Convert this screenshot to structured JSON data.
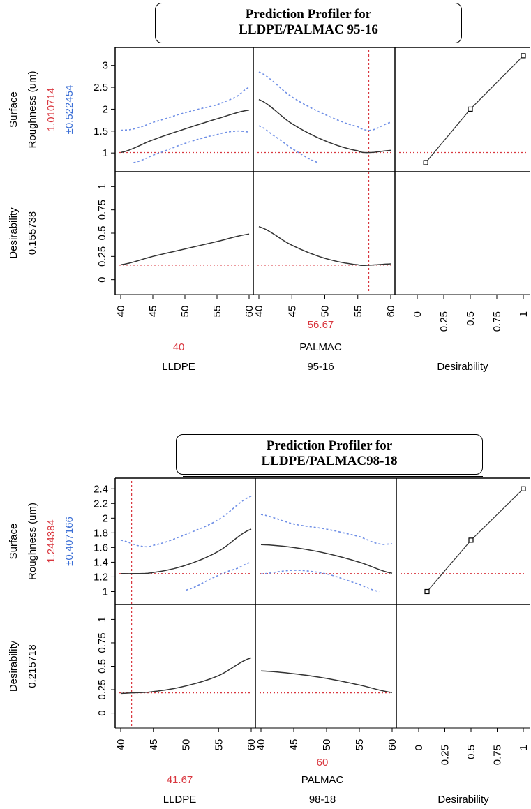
{
  "profilers": [
    {
      "title_line1": "Prediction Profiler for",
      "title_line2": "LLDPE/PALMAC 95-16",
      "response": {
        "label_line1": "Surface",
        "label_line2": "Roughness (um)",
        "value": "1.010714",
        "ci": "±0.522454",
        "ylim": [
          0.7,
          3.25
        ],
        "ticks": [
          "3",
          "2.5",
          "2",
          "1.5",
          "1"
        ],
        "tick_values": [
          3,
          2.5,
          2,
          1.5,
          1
        ]
      },
      "desirability": {
        "label": "Desirability",
        "value": "0.155738",
        "ylim": [
          -0.1,
          1.1
        ],
        "ticks": [
          "1",
          "0.75",
          "0.5",
          "0.25",
          "0"
        ],
        "tick_values": [
          1,
          0.75,
          0.5,
          0.25,
          0
        ]
      },
      "factors": [
        {
          "name_line1": "",
          "name_line2": "LLDPE",
          "current": "40",
          "current_value": 40,
          "xlim": [
            40,
            60
          ],
          "ticks": [
            "40",
            "45",
            "50",
            "55",
            "60"
          ],
          "tick_values": [
            40,
            45,
            50,
            55,
            60
          ],
          "show_vline": false
        },
        {
          "name_line1": "PALMAC",
          "name_line2": "95-16",
          "current": "56.67",
          "current_value": 56.67,
          "xlim": [
            40,
            60
          ],
          "ticks": [
            "40",
            "45",
            "50",
            "55",
            "60"
          ],
          "tick_values": [
            40,
            45,
            50,
            55,
            60
          ],
          "show_vline": true
        }
      ],
      "desirability_axis": {
        "label": "Desirability",
        "ticks": [
          "0",
          "0.25",
          "0.5",
          "0.75",
          "1"
        ],
        "tick_values": [
          0,
          0.25,
          0.5,
          0.75,
          1
        ]
      }
    },
    {
      "title_line1": "Prediction Profiler for",
      "title_line2": "LLDPE/PALMAC98-18",
      "response": {
        "label_line1": "Surface",
        "label_line2": "Roughness (um)",
        "value": "1.244384",
        "ci": "±0.407166",
        "ylim": [
          0.9,
          2.45
        ],
        "ticks": [
          "2.4",
          "2.2",
          "2",
          "1.8",
          "1.6",
          "1.4",
          "1.2",
          "1"
        ],
        "tick_values": [
          2.4,
          2.2,
          2,
          1.8,
          1.6,
          1.4,
          1.2,
          1
        ]
      },
      "desirability": {
        "label": "Desirability",
        "value": "0.215718",
        "ylim": [
          -0.1,
          1.1
        ],
        "ticks": [
          "1",
          "0.75",
          "0.5",
          "0.25",
          "0"
        ],
        "tick_values": [
          1,
          0.75,
          0.5,
          0.25,
          0
        ]
      },
      "factors": [
        {
          "name_line1": "",
          "name_line2": "LLDPE",
          "current": "41.67",
          "current_value": 41.67,
          "xlim": [
            40,
            60
          ],
          "ticks": [
            "40",
            "45",
            "50",
            "55",
            "60"
          ],
          "tick_values": [
            40,
            45,
            50,
            55,
            60
          ],
          "show_vline": true
        },
        {
          "name_line1": "PALMAC",
          "name_line2": "98-18",
          "current": "60",
          "current_value": 60,
          "xlim": [
            40,
            60
          ],
          "ticks": [
            "40",
            "45",
            "50",
            "55",
            "60"
          ],
          "tick_values": [
            40,
            45,
            50,
            55,
            60
          ],
          "show_vline": false
        }
      ],
      "desirability_axis": {
        "label": "Desirability",
        "ticks": [
          "0",
          "0.25",
          "0.5",
          "0.75",
          "1"
        ],
        "tick_values": [
          0,
          0.25,
          0.5,
          0.75,
          1
        ]
      }
    }
  ],
  "colors": {
    "current_value": "#d9363e",
    "ci": "#3b6fd6",
    "curve": "#333333",
    "ci_curve": "#6f8fe6",
    "ref_line": "#d9363e"
  },
  "chart_data": [
    {
      "type": "line",
      "title": "Prediction Profiler for LLDPE/PALMAC 95-16",
      "ylabel": "Surface Roughness (um)",
      "series": [
        {
          "panel": "LLDPE",
          "kind": "prediction",
          "x": [
            40,
            45,
            50,
            55,
            60
          ],
          "y": [
            1.01,
            1.3,
            1.55,
            1.78,
            1.98
          ]
        },
        {
          "panel": "LLDPE",
          "kind": "upper",
          "x": [
            40,
            42,
            45,
            50,
            55,
            58,
            60
          ],
          "y": [
            1.52,
            1.55,
            1.7,
            1.92,
            2.1,
            2.28,
            2.5
          ]
        },
        {
          "panel": "LLDPE",
          "kind": "lower",
          "x": [
            42,
            45,
            50,
            55,
            58,
            60
          ],
          "y": [
            0.78,
            0.95,
            1.22,
            1.42,
            1.5,
            1.48
          ]
        },
        {
          "panel": "PALMAC 95-16",
          "kind": "prediction",
          "x": [
            40,
            45,
            50,
            55,
            56.67,
            60
          ],
          "y": [
            2.22,
            1.67,
            1.28,
            1.05,
            1.01,
            1.06
          ]
        },
        {
          "panel": "PALMAC 95-16",
          "kind": "upper",
          "x": [
            40,
            45,
            50,
            55,
            57,
            60
          ],
          "y": [
            2.85,
            2.28,
            1.88,
            1.6,
            1.52,
            1.7
          ]
        },
        {
          "panel": "PALMAC 95-16",
          "kind": "lower",
          "x": [
            40,
            42,
            45,
            49
          ],
          "y": [
            1.62,
            1.42,
            1.1,
            0.78
          ]
        },
        {
          "panel": "Desirability fn",
          "kind": "desirability",
          "x": [
            0.08,
            0.5,
            1
          ],
          "y": [
            0.78,
            2.0,
            3.22
          ]
        }
      ],
      "desirability_series": [
        {
          "panel": "LLDPE",
          "x": [
            40,
            45,
            50,
            55,
            60
          ],
          "y": [
            0.16,
            0.25,
            0.33,
            0.41,
            0.49
          ]
        },
        {
          "panel": "PALMAC 95-16",
          "x": [
            40,
            45,
            50,
            55,
            56.67,
            60
          ],
          "y": [
            0.57,
            0.37,
            0.23,
            0.16,
            0.156,
            0.17
          ]
        }
      ]
    },
    {
      "type": "line",
      "title": "Prediction Profiler for LLDPE/PALMAC98-18",
      "ylabel": "Surface Roughness (um)",
      "series": [
        {
          "panel": "LLDPE",
          "kind": "prediction",
          "x": [
            40,
            41.67,
            45,
            50,
            55,
            60
          ],
          "y": [
            1.245,
            1.244,
            1.26,
            1.36,
            1.55,
            1.85
          ]
        },
        {
          "panel": "LLDPE",
          "kind": "upper",
          "x": [
            40,
            43,
            45,
            50,
            55,
            60
          ],
          "y": [
            1.7,
            1.62,
            1.63,
            1.78,
            1.98,
            2.3
          ]
        },
        {
          "panel": "LLDPE",
          "kind": "lower",
          "x": [
            50,
            55,
            58,
            60
          ],
          "y": [
            1.02,
            1.22,
            1.32,
            1.4
          ]
        },
        {
          "panel": "PALMAC 98-18",
          "kind": "prediction",
          "x": [
            40,
            45,
            50,
            55,
            60
          ],
          "y": [
            1.64,
            1.6,
            1.52,
            1.4,
            1.25
          ]
        },
        {
          "panel": "PALMAC 98-18",
          "kind": "upper",
          "x": [
            40,
            45,
            50,
            55,
            58,
            60
          ],
          "y": [
            2.05,
            1.92,
            1.85,
            1.75,
            1.65,
            1.65
          ]
        },
        {
          "panel": "PALMAC 98-18",
          "kind": "lower",
          "x": [
            40,
            45,
            50,
            55,
            58
          ],
          "y": [
            1.24,
            1.29,
            1.24,
            1.1,
            1.0
          ]
        },
        {
          "panel": "Desirability fn",
          "kind": "desirability",
          "x": [
            0.08,
            0.5,
            1
          ],
          "y": [
            1.0,
            1.7,
            2.4
          ]
        }
      ],
      "desirability_series": [
        {
          "panel": "LLDPE",
          "x": [
            40,
            41.67,
            45,
            50,
            55,
            60
          ],
          "y": [
            0.21,
            0.216,
            0.23,
            0.29,
            0.4,
            0.59
          ]
        },
        {
          "panel": "PALMAC 98-18",
          "x": [
            40,
            45,
            50,
            55,
            60
          ],
          "y": [
            0.45,
            0.42,
            0.37,
            0.3,
            0.22
          ]
        }
      ]
    }
  ]
}
